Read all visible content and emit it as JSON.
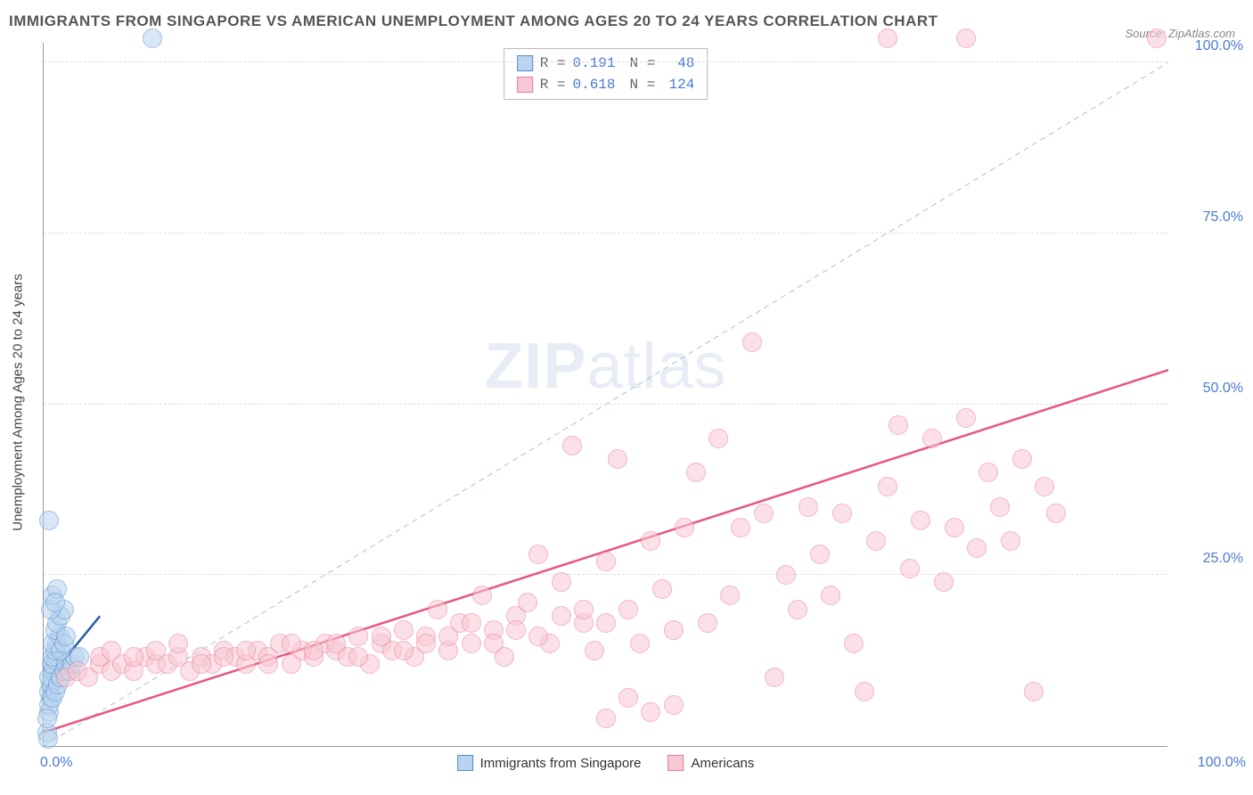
{
  "title": "IMMIGRANTS FROM SINGAPORE VS AMERICAN UNEMPLOYMENT AMONG AGES 20 TO 24 YEARS CORRELATION CHART",
  "source_label": "Source: ZipAtlas.com",
  "watermark_zip": "ZIP",
  "watermark_atlas": "atlas",
  "y_axis_label": "Unemployment Among Ages 20 to 24 years",
  "x_tick_min": "0.0%",
  "x_tick_max": "100.0%",
  "y_ticks": [
    {
      "pos": 25,
      "label": "25.0%"
    },
    {
      "pos": 50,
      "label": "50.0%"
    },
    {
      "pos": 75,
      "label": "75.0%"
    },
    {
      "pos": 100,
      "label": "100.0%"
    }
  ],
  "legend_top": {
    "r_label": "R =",
    "n_label": "N =",
    "rows": [
      {
        "swatch_fill": "#b8d4f0",
        "swatch_border": "#5a8cc7",
        "r": "0.191",
        "n": "48"
      },
      {
        "swatch_fill": "#f8c8d4",
        "swatch_border": "#e77a9a",
        "r": "0.618",
        "n": "124"
      }
    ]
  },
  "legend_bottom": [
    {
      "swatch_fill": "#b8d4f0",
      "swatch_border": "#5a8cc7",
      "label": "Immigrants from Singapore"
    },
    {
      "swatch_fill": "#f8c8d4",
      "swatch_border": "#e77a9a",
      "label": "Americans"
    }
  ],
  "chart": {
    "type": "scatter",
    "xlim": [
      0,
      100
    ],
    "ylim": [
      0,
      103
    ],
    "background_color": "#ffffff",
    "grid_color": "#dddddd",
    "point_radius": 11,
    "point_opacity": 0.55,
    "diagonal": {
      "color": "#a8c0e0",
      "dash": "6,5",
      "width": 1
    },
    "series": [
      {
        "name": "blue",
        "fill": "#b8d4f0",
        "stroke": "#5a8cc7",
        "trend": {
          "x1": 0,
          "y1": 9,
          "x2": 5,
          "y2": 19,
          "color": "#2a5ca8",
          "width": 2.5
        },
        "points": [
          [
            0.3,
            2
          ],
          [
            0.5,
            5
          ],
          [
            0.6,
            7
          ],
          [
            0.7,
            9
          ],
          [
            0.8,
            10
          ],
          [
            0.9,
            11
          ],
          [
            1.0,
            12
          ],
          [
            1.1,
            12.5
          ],
          [
            0.5,
            8
          ],
          [
            0.6,
            9
          ],
          [
            0.7,
            10
          ],
          [
            0.8,
            11
          ],
          [
            0.9,
            11.5
          ],
          [
            1.0,
            12.5
          ],
          [
            1.2,
            13
          ],
          [
            0.5,
            10
          ],
          [
            0.7,
            12
          ],
          [
            0.8,
            13
          ],
          [
            1.0,
            14
          ],
          [
            1.2,
            15
          ],
          [
            1.4,
            16
          ],
          [
            0.8,
            15
          ],
          [
            1.0,
            17
          ],
          [
            1.2,
            18
          ],
          [
            1.5,
            19
          ],
          [
            1.8,
            20
          ],
          [
            0.6,
            20
          ],
          [
            0.8,
            22
          ],
          [
            1.2,
            23
          ],
          [
            1.0,
            21
          ],
          [
            0.5,
            6
          ],
          [
            0.8,
            7
          ],
          [
            1.0,
            8
          ],
          [
            1.3,
            9
          ],
          [
            1.5,
            10
          ],
          [
            1.8,
            11
          ],
          [
            2.0,
            12
          ],
          [
            2.3,
            11
          ],
          [
            2.5,
            12
          ],
          [
            2.8,
            13
          ],
          [
            1.5,
            14
          ],
          [
            1.8,
            15
          ],
          [
            2.0,
            16
          ],
          [
            0.5,
            33
          ],
          [
            0.3,
            4
          ],
          [
            9.7,
            103.5
          ],
          [
            0.4,
            1
          ],
          [
            3.2,
            13
          ]
        ]
      },
      {
        "name": "pink",
        "fill": "#f8c8d4",
        "stroke": "#e77a9a",
        "trend": {
          "x1": 0,
          "y1": 2,
          "x2": 100,
          "y2": 55,
          "color": "#e8567f",
          "width": 2.5
        },
        "points": [
          [
            2,
            10
          ],
          [
            3,
            11
          ],
          [
            4,
            10
          ],
          [
            5,
            12
          ],
          [
            6,
            11
          ],
          [
            7,
            12
          ],
          [
            8,
            11
          ],
          [
            9,
            13
          ],
          [
            10,
            12
          ],
          [
            11,
            12
          ],
          [
            12,
            13
          ],
          [
            13,
            11
          ],
          [
            14,
            13
          ],
          [
            15,
            12
          ],
          [
            16,
            14
          ],
          [
            17,
            13
          ],
          [
            18,
            12
          ],
          [
            19,
            14
          ],
          [
            20,
            13
          ],
          [
            21,
            15
          ],
          [
            22,
            12
          ],
          [
            23,
            14
          ],
          [
            24,
            13
          ],
          [
            25,
            15
          ],
          [
            26,
            14
          ],
          [
            27,
            13
          ],
          [
            28,
            16
          ],
          [
            29,
            12
          ],
          [
            30,
            15
          ],
          [
            31,
            14
          ],
          [
            32,
            17
          ],
          [
            33,
            13
          ],
          [
            34,
            16
          ],
          [
            35,
            20
          ],
          [
            36,
            14
          ],
          [
            37,
            18
          ],
          [
            38,
            15
          ],
          [
            39,
            22
          ],
          [
            40,
            17
          ],
          [
            41,
            13
          ],
          [
            42,
            19
          ],
          [
            43,
            21
          ],
          [
            44,
            28
          ],
          [
            45,
            15
          ],
          [
            46,
            24
          ],
          [
            47,
            44
          ],
          [
            48,
            18
          ],
          [
            49,
            14
          ],
          [
            50,
            27
          ],
          [
            51,
            42
          ],
          [
            52,
            20
          ],
          [
            53,
            15
          ],
          [
            54,
            30
          ],
          [
            55,
            23
          ],
          [
            56,
            17
          ],
          [
            57,
            32
          ],
          [
            58,
            40
          ],
          [
            59,
            18
          ],
          [
            60,
            45
          ],
          [
            61,
            22
          ],
          [
            62,
            32
          ],
          [
            63,
            59
          ],
          [
            64,
            34
          ],
          [
            65,
            10
          ],
          [
            66,
            25
          ],
          [
            67,
            20
          ],
          [
            68,
            35
          ],
          [
            69,
            28
          ],
          [
            70,
            22
          ],
          [
            71,
            34
          ],
          [
            72,
            15
          ],
          [
            73,
            8
          ],
          [
            74,
            30
          ],
          [
            75,
            38
          ],
          [
            76,
            47
          ],
          [
            77,
            26
          ],
          [
            78,
            33
          ],
          [
            79,
            45
          ],
          [
            80,
            24
          ],
          [
            81,
            32
          ],
          [
            82,
            48
          ],
          [
            83,
            29
          ],
          [
            84,
            40
          ],
          [
            85,
            35
          ],
          [
            86,
            30
          ],
          [
            87,
            42
          ],
          [
            88,
            8
          ],
          [
            89,
            38
          ],
          [
            90,
            34
          ],
          [
            5,
            13
          ],
          [
            6,
            14
          ],
          [
            8,
            13
          ],
          [
            10,
            14
          ],
          [
            12,
            15
          ],
          [
            14,
            12
          ],
          [
            16,
            13
          ],
          [
            18,
            14
          ],
          [
            20,
            12
          ],
          [
            22,
            15
          ],
          [
            24,
            14
          ],
          [
            26,
            15
          ],
          [
            28,
            13
          ],
          [
            30,
            16
          ],
          [
            32,
            14
          ],
          [
            34,
            15
          ],
          [
            36,
            16
          ],
          [
            38,
            18
          ],
          [
            40,
            15
          ],
          [
            42,
            17
          ],
          [
            44,
            16
          ],
          [
            46,
            19
          ],
          [
            48,
            20
          ],
          [
            50,
            18
          ],
          [
            52,
            7
          ],
          [
            54,
            5
          ],
          [
            56,
            6
          ],
          [
            50,
            4
          ],
          [
            75,
            103.5
          ],
          [
            82,
            103.5
          ],
          [
            99,
            103.5
          ]
        ]
      }
    ]
  }
}
